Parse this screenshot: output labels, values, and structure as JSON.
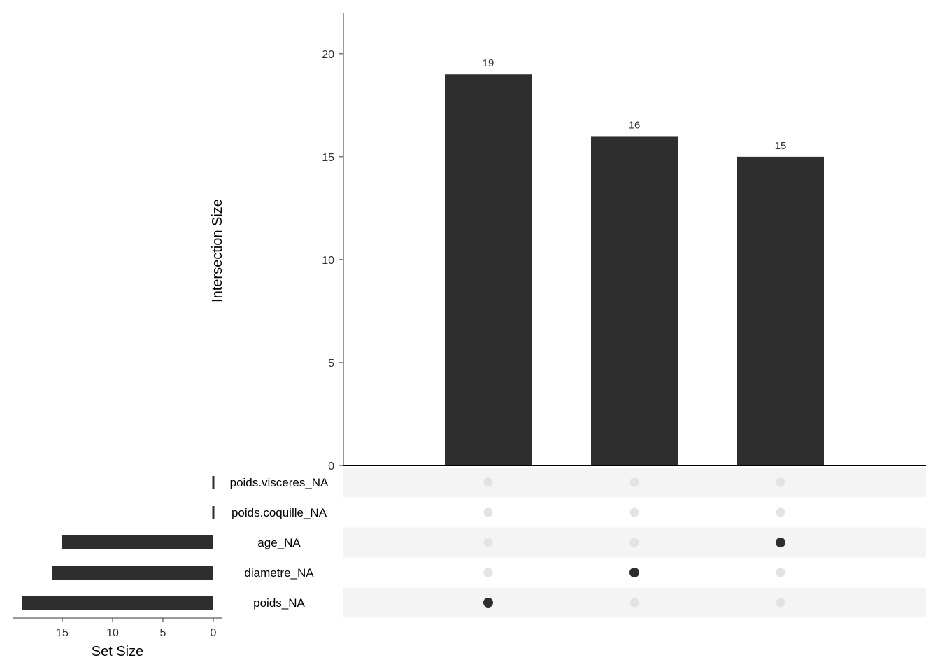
{
  "chart_data": {
    "type": "upset",
    "intersections": {
      "ylabel": "Intersection Size",
      "ylim": [
        0,
        22
      ],
      "yticks": [
        0,
        5,
        10,
        15,
        20
      ],
      "values": [
        19,
        16,
        15
      ],
      "data_labels": [
        "19",
        "16",
        "15"
      ],
      "members": [
        [
          "poids_NA"
        ],
        [
          "diametre_NA"
        ],
        [
          "age_NA"
        ]
      ]
    },
    "sets": {
      "xlabel": "Set Size",
      "names": [
        "poids.visceres_NA",
        "poids.coquille_NA",
        "age_NA",
        "diametre_NA",
        "poids_NA"
      ],
      "sizes": [
        0,
        0,
        15,
        16,
        19
      ],
      "xlim": [
        0,
        20
      ],
      "xticks": [
        15,
        10,
        5,
        0
      ]
    },
    "colors": {
      "bar": "#2e2e2e",
      "dot_active": "#2e2e2e",
      "dot_inactive": "#e3e3e3",
      "row_stripe": "#f4f4f4",
      "text": "#333333"
    }
  }
}
